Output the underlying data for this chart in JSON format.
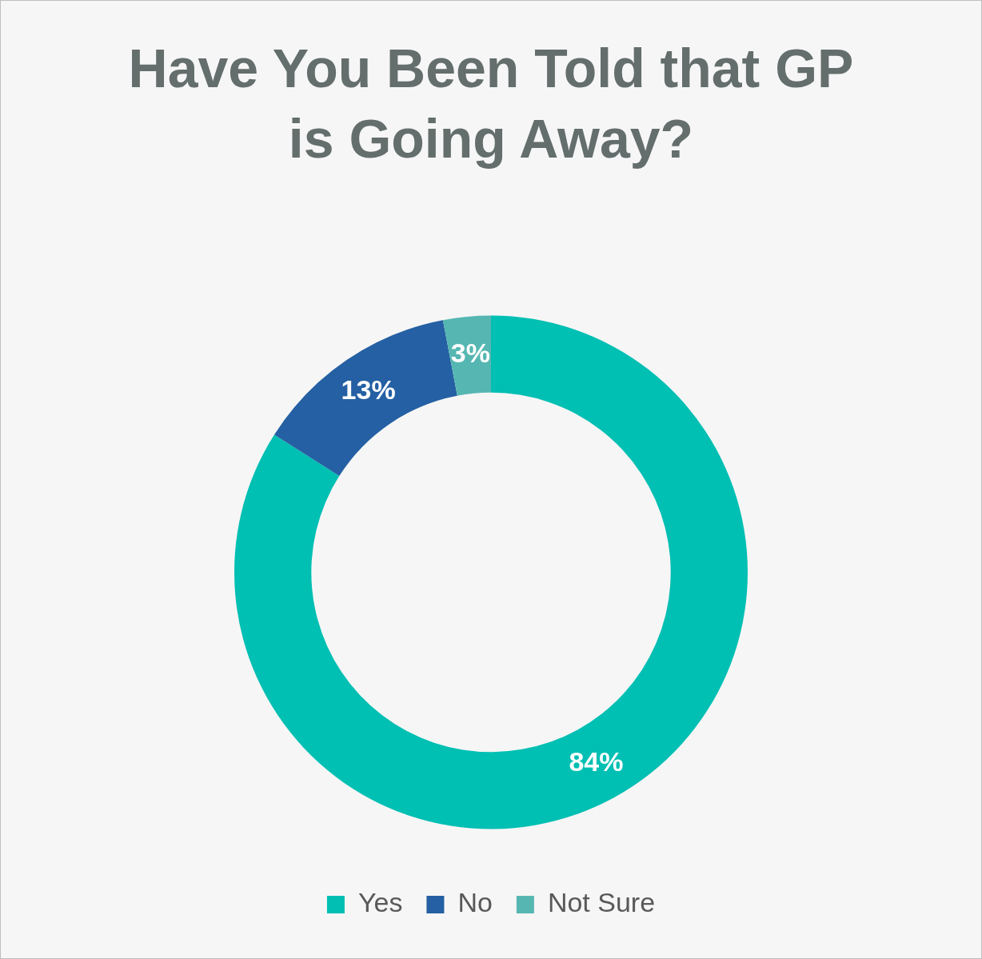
{
  "chart_data": {
    "type": "donut",
    "title": "Have You Been Told that GP is Going Away?",
    "categories": [
      "Yes",
      "No",
      "Not Sure"
    ],
    "values": [
      84,
      13,
      3
    ],
    "colors": [
      "#00bfb3",
      "#2460a3",
      "#56b7b2"
    ],
    "value_labels": [
      "84%",
      "13%",
      "3%"
    ],
    "legend": "bottom"
  }
}
